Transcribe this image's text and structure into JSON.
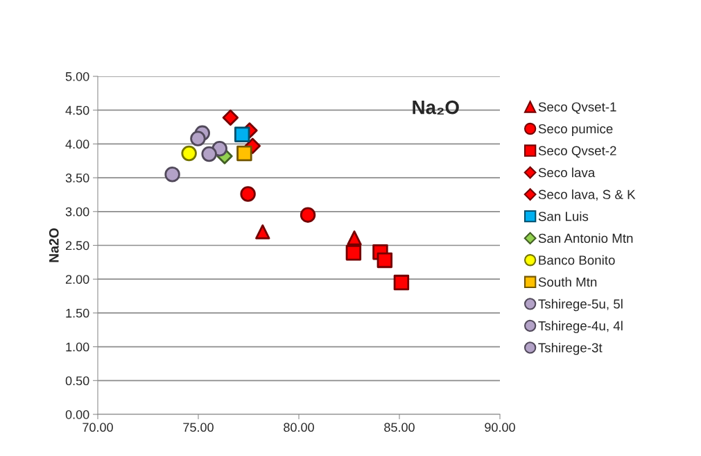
{
  "chart_data": {
    "type": "scatter",
    "title": "Na₂O",
    "ylabel": "Na2O",
    "xlim": [
      70,
      90
    ],
    "ylim": [
      0,
      5
    ],
    "xticks": [
      {
        "value": 70,
        "label": "70.00"
      },
      {
        "value": 75,
        "label": "75.00"
      },
      {
        "value": 80,
        "label": "80.00"
      },
      {
        "value": 85,
        "label": "85.00"
      },
      {
        "value": 90,
        "label": "90.00"
      }
    ],
    "yticks": [
      {
        "value": 0,
        "label": "0.00"
      },
      {
        "value": 0.5,
        "label": "0.50"
      },
      {
        "value": 1,
        "label": "1.00"
      },
      {
        "value": 1.5,
        "label": "1.50"
      },
      {
        "value": 2,
        "label": "2.00"
      },
      {
        "value": 2.5,
        "label": "2.50"
      },
      {
        "value": 3,
        "label": "3.00"
      },
      {
        "value": 3.5,
        "label": "3.50"
      },
      {
        "value": 4,
        "label": "4.00"
      },
      {
        "value": 4.5,
        "label": "4.50"
      },
      {
        "value": 5,
        "label": "5.00"
      }
    ],
    "grid": "y",
    "legend": "right",
    "series": [
      {
        "name": "Seco Qvset-1",
        "color": "#ff0000",
        "marker": "triangle",
        "x": [
          78.2,
          82.76
        ],
        "values": [
          2.7,
          2.61
        ]
      },
      {
        "name": "Seco pumice",
        "color": "#ff0000",
        "marker": "circle",
        "x": [
          77.47,
          80.45
        ],
        "values": [
          3.26,
          2.95
        ]
      },
      {
        "name": "Seco Qvset-2",
        "color": "#ff0000",
        "marker": "square",
        "x": [
          82.72,
          84.05,
          84.27,
          85.1
        ],
        "values": [
          2.39,
          2.4,
          2.28,
          1.95
        ]
      },
      {
        "name": "Seco lava",
        "color": "#ff0000",
        "marker": "diamond",
        "x": [
          77.55,
          77.7
        ],
        "values": [
          4.2,
          3.97
        ]
      },
      {
        "name": "Seco lava, S & K",
        "color": "#ff0000",
        "marker": "diamond",
        "x": [
          76.6
        ],
        "values": [
          4.39
        ]
      },
      {
        "name": "San Luis",
        "color": "#00b0f0",
        "marker": "square",
        "x": [
          77.18
        ],
        "values": [
          4.14
        ]
      },
      {
        "name": "San Antonio Mtn",
        "color": "#92d050",
        "marker": "diamond",
        "x": [
          76.31
        ],
        "values": [
          3.82
        ]
      },
      {
        "name": "Banco Bonito",
        "color": "#ffff00",
        "marker": "circle",
        "x": [
          74.54
        ],
        "values": [
          3.86
        ]
      },
      {
        "name": "South Mtn",
        "color": "#ffc000",
        "marker": "square",
        "x": [
          77.29
        ],
        "values": [
          3.86
        ]
      },
      {
        "name": "Tshirege-5u, 5l",
        "color": "#b3a2c7",
        "marker": "circle",
        "x": [
          75.2,
          76.06
        ],
        "values": [
          4.16,
          3.93
        ]
      },
      {
        "name": "Tshirege-4u, 4l",
        "color": "#b3a2c7",
        "marker": "circle",
        "x": [
          74.98,
          73.71
        ],
        "values": [
          4.08,
          3.55
        ]
      },
      {
        "name": "Tshirege-3t",
        "color": "#b3a2c7",
        "marker": "circle",
        "x": [
          75.54
        ],
        "values": [
          3.85
        ]
      }
    ]
  }
}
